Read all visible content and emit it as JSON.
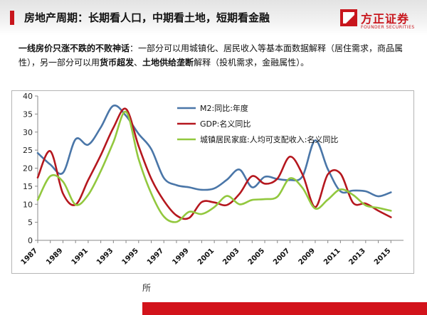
{
  "header": {
    "title": "房地产周期：长期看人口，中期看土地，短期看金融",
    "logo_name": "方正证券",
    "logo_en": "FOUNDER SECURITIES",
    "accent_color": "#c8161d"
  },
  "summary": {
    "lead_bold": "一线房价只涨不跌的不败神话",
    "part1": "：一部分可以用城镇化、居民收入等基本面数据解释（居住需求，商品属性），另一部分可以用",
    "bold2": "货币超发",
    "sep": "、",
    "bold3": "土地供给垄断",
    "part2": "解释（投机需求，金融属性）。"
  },
  "footnote": "所",
  "chart_data": {
    "type": "line",
    "x": [
      1987,
      1988,
      1989,
      1990,
      1991,
      1992,
      1993,
      1994,
      1995,
      1996,
      1997,
      1998,
      1999,
      2000,
      2001,
      2002,
      2003,
      2004,
      2005,
      2006,
      2007,
      2008,
      2009,
      2010,
      2011,
      2012,
      2013,
      2014,
      2015
    ],
    "x_tick_labels": [
      "1987",
      "1989",
      "1991",
      "1993",
      "1995",
      "1997",
      "1999",
      "2001",
      "2003",
      "2005",
      "2007",
      "2009",
      "2011",
      "2013",
      "2015"
    ],
    "y_ticks": [
      0,
      5,
      10,
      15,
      20,
      25,
      30,
      35,
      40
    ],
    "ylim": [
      0,
      40
    ],
    "xlim": [
      1987,
      2016
    ],
    "legend_position": "top-right",
    "grid": false,
    "series": [
      {
        "name": "M2:同比:年度",
        "color": "#4a76a8",
        "values": [
          24.2,
          21.0,
          18.7,
          28.0,
          26.5,
          31.3,
          37.3,
          34.5,
          29.5,
          25.3,
          17.3,
          15.3,
          14.7,
          14.0,
          14.4,
          16.8,
          19.6,
          14.7,
          17.6,
          17.0,
          16.7,
          17.8,
          27.7,
          19.7,
          13.6,
          13.8,
          13.6,
          12.2,
          13.3
        ]
      },
      {
        "name": "GDP:名义同比",
        "color": "#b5171e",
        "values": [
          17.4,
          24.7,
          13.0,
          9.9,
          16.7,
          23.6,
          31.2,
          36.4,
          26.1,
          17.1,
          11.0,
          6.9,
          6.2,
          10.6,
          10.5,
          9.8,
          12.9,
          17.8,
          15.7,
          17.1,
          23.2,
          18.2,
          9.2,
          18.3,
          18.5,
          10.4,
          10.2,
          8.2,
          6.4
        ]
      },
      {
        "name": "城镇居民家庭:人均可支配收入:名义同比",
        "color": "#92c83e",
        "values": [
          11.2,
          17.8,
          16.3,
          9.9,
          12.6,
          19.2,
          27.2,
          35.6,
          22.5,
          13.0,
          6.6,
          5.1,
          7.9,
          7.3,
          9.2,
          12.3,
          10.0,
          11.2,
          11.4,
          12.1,
          17.2,
          14.5,
          8.8,
          11.3,
          14.1,
          12.6,
          9.7,
          9.0,
          8.2
        ]
      }
    ]
  }
}
